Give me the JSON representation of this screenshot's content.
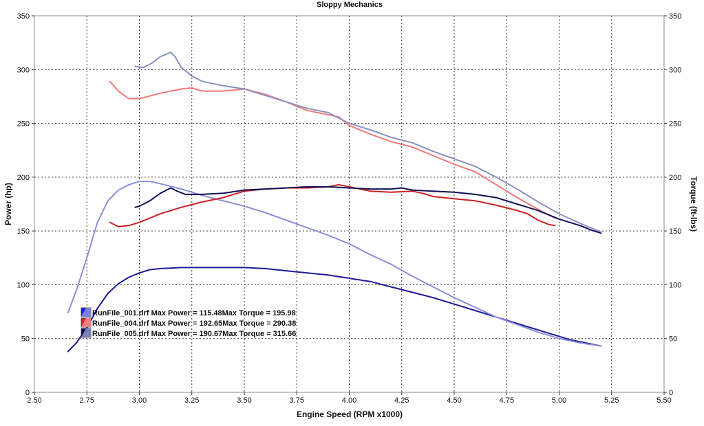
{
  "chart_data": {
    "type": "line",
    "title": "Sloppy Mechanics",
    "xlabel": "Engine Speed (RPM x1000)",
    "ylabel": "Power (hp)",
    "y2label": "Torque (ft-lbs)",
    "xlim": [
      2.5,
      5.5
    ],
    "ylim": [
      0,
      350
    ],
    "y2lim": [
      0,
      350
    ],
    "xticks": [
      "2.50",
      "2.75",
      "3.00",
      "3.25",
      "3.50",
      "3.75",
      "4.00",
      "4.25",
      "4.50",
      "4.75",
      "5.00",
      "5.25",
      "5.50"
    ],
    "yticks": [
      "0",
      "50",
      "100",
      "150",
      "200",
      "250",
      "300",
      "350"
    ],
    "y2ticks": [
      "0",
      "50",
      "100",
      "150",
      "200",
      "250",
      "300",
      "350"
    ],
    "grid": true,
    "legend_position": "lower-left",
    "legend": [
      {
        "file": "RunFile_001.drf",
        "text": "RunFile_001.drf Max Power = 115.48Max Torque = 195.98",
        "swatch": [
          "#1a1aee",
          "#7a82d8"
        ]
      },
      {
        "file": "RunFile_004.drf",
        "text": "RunFile_004.drf Max Power = 192.65Max Torque = 290.38",
        "swatch": [
          "#e02020",
          "#f08080"
        ]
      },
      {
        "file": "RunFile_005.drf",
        "text": "RunFile_005.drf Max Power = 190.67Max Torque = 315.66",
        "swatch": [
          "#0a0a50",
          "#7a80b8"
        ]
      }
    ],
    "series": [
      {
        "run": "RunFile_001.drf",
        "measure": "power",
        "axis": "left",
        "color": "#1b1b96",
        "points": [
          [
            2.66,
            38
          ],
          [
            2.7,
            46
          ],
          [
            2.75,
            60
          ],
          [
            2.8,
            78
          ],
          [
            2.85,
            92
          ],
          [
            2.9,
            101
          ],
          [
            2.95,
            107
          ],
          [
            3.0,
            111
          ],
          [
            3.05,
            114
          ],
          [
            3.1,
            115
          ],
          [
            3.2,
            116
          ],
          [
            3.3,
            116
          ],
          [
            3.4,
            116
          ],
          [
            3.5,
            116
          ],
          [
            3.6,
            115
          ],
          [
            3.7,
            113
          ],
          [
            3.8,
            111
          ],
          [
            3.9,
            109
          ],
          [
            4.0,
            106
          ],
          [
            4.1,
            103
          ],
          [
            4.2,
            98
          ],
          [
            4.3,
            93
          ],
          [
            4.4,
            88
          ],
          [
            4.5,
            82
          ],
          [
            4.6,
            76
          ],
          [
            4.7,
            70
          ],
          [
            4.8,
            64
          ],
          [
            4.9,
            58
          ],
          [
            4.95,
            55
          ],
          [
            5.0,
            52
          ],
          [
            5.05,
            49
          ],
          [
            5.1,
            47
          ],
          [
            5.15,
            45
          ],
          [
            5.2,
            43
          ]
        ]
      },
      {
        "run": "RunFile_001.drf",
        "measure": "torque",
        "axis": "right",
        "color": "#8a8edc",
        "points": [
          [
            2.66,
            74
          ],
          [
            2.7,
            95
          ],
          [
            2.75,
            125
          ],
          [
            2.8,
            158
          ],
          [
            2.85,
            178
          ],
          [
            2.9,
            188
          ],
          [
            2.95,
            193
          ],
          [
            3.0,
            196
          ],
          [
            3.05,
            196
          ],
          [
            3.1,
            194
          ],
          [
            3.2,
            189
          ],
          [
            3.3,
            183
          ],
          [
            3.4,
            178
          ],
          [
            3.5,
            173
          ],
          [
            3.6,
            167
          ],
          [
            3.7,
            160
          ],
          [
            3.8,
            153
          ],
          [
            3.9,
            146
          ],
          [
            4.0,
            138
          ],
          [
            4.1,
            128
          ],
          [
            4.2,
            119
          ],
          [
            4.3,
            108
          ],
          [
            4.4,
            98
          ],
          [
            4.5,
            88
          ],
          [
            4.6,
            79
          ],
          [
            4.7,
            70
          ],
          [
            4.8,
            63
          ],
          [
            4.9,
            56
          ],
          [
            5.0,
            50
          ],
          [
            5.1,
            46
          ],
          [
            5.2,
            43
          ]
        ]
      },
      {
        "run": "RunFile_004.drf",
        "measure": "power",
        "axis": "left",
        "color": "#cc2020",
        "points": [
          [
            2.86,
            158
          ],
          [
            2.9,
            154
          ],
          [
            2.95,
            155
          ],
          [
            3.0,
            158
          ],
          [
            3.05,
            162
          ],
          [
            3.1,
            166
          ],
          [
            3.2,
            172
          ],
          [
            3.3,
            177
          ],
          [
            3.4,
            181
          ],
          [
            3.5,
            187
          ],
          [
            3.6,
            189
          ],
          [
            3.7,
            190
          ],
          [
            3.8,
            190
          ],
          [
            3.9,
            191
          ],
          [
            3.95,
            193
          ],
          [
            4.0,
            191
          ],
          [
            4.1,
            187
          ],
          [
            4.2,
            186
          ],
          [
            4.3,
            187
          ],
          [
            4.35,
            185
          ],
          [
            4.4,
            182
          ],
          [
            4.5,
            180
          ],
          [
            4.6,
            178
          ],
          [
            4.7,
            174
          ],
          [
            4.8,
            169
          ],
          [
            4.85,
            166
          ],
          [
            4.9,
            160
          ],
          [
            4.95,
            156
          ],
          [
            4.98,
            155
          ]
        ]
      },
      {
        "run": "RunFile_004.drf",
        "measure": "torque",
        "axis": "right",
        "color": "#f07878",
        "points": [
          [
            2.86,
            289
          ],
          [
            2.9,
            280
          ],
          [
            2.95,
            273
          ],
          [
            3.0,
            273
          ],
          [
            3.1,
            278
          ],
          [
            3.2,
            282
          ],
          [
            3.25,
            283
          ],
          [
            3.3,
            280
          ],
          [
            3.4,
            280
          ],
          [
            3.5,
            282
          ],
          [
            3.6,
            277
          ],
          [
            3.7,
            270
          ],
          [
            3.8,
            262
          ],
          [
            3.9,
            258
          ],
          [
            3.95,
            256
          ],
          [
            4.0,
            248
          ],
          [
            4.1,
            240
          ],
          [
            4.2,
            233
          ],
          [
            4.3,
            228
          ],
          [
            4.4,
            220
          ],
          [
            4.5,
            212
          ],
          [
            4.6,
            205
          ],
          [
            4.7,
            193
          ],
          [
            4.8,
            181
          ],
          [
            4.9,
            170
          ],
          [
            4.98,
            162
          ]
        ]
      },
      {
        "run": "RunFile_005.drf",
        "measure": "power",
        "axis": "left",
        "color": "#10105a",
        "points": [
          [
            2.98,
            172
          ],
          [
            3.0,
            173
          ],
          [
            3.05,
            178
          ],
          [
            3.1,
            185
          ],
          [
            3.15,
            190
          ],
          [
            3.18,
            187
          ],
          [
            3.22,
            184
          ],
          [
            3.3,
            184
          ],
          [
            3.4,
            185
          ],
          [
            3.5,
            188
          ],
          [
            3.6,
            189
          ],
          [
            3.7,
            190
          ],
          [
            3.8,
            191
          ],
          [
            3.9,
            191
          ],
          [
            4.0,
            190
          ],
          [
            4.1,
            189
          ],
          [
            4.2,
            189
          ],
          [
            4.25,
            190
          ],
          [
            4.3,
            188
          ],
          [
            4.4,
            187
          ],
          [
            4.5,
            186
          ],
          [
            4.6,
            184
          ],
          [
            4.7,
            181
          ],
          [
            4.8,
            175
          ],
          [
            4.9,
            169
          ],
          [
            5.0,
            161
          ],
          [
            5.1,
            155
          ],
          [
            5.15,
            151
          ],
          [
            5.2,
            148
          ]
        ]
      },
      {
        "run": "RunFile_005.drf",
        "measure": "torque",
        "axis": "right",
        "color": "#8a90c0",
        "points": [
          [
            2.98,
            303
          ],
          [
            3.02,
            302
          ],
          [
            3.06,
            306
          ],
          [
            3.1,
            312
          ],
          [
            3.15,
            316
          ],
          [
            3.17,
            312
          ],
          [
            3.2,
            302
          ],
          [
            3.25,
            294
          ],
          [
            3.3,
            289
          ],
          [
            3.4,
            285
          ],
          [
            3.5,
            282
          ],
          [
            3.6,
            276
          ],
          [
            3.7,
            270
          ],
          [
            3.8,
            264
          ],
          [
            3.9,
            260
          ],
          [
            4.0,
            250
          ],
          [
            4.1,
            244
          ],
          [
            4.2,
            237
          ],
          [
            4.3,
            232
          ],
          [
            4.4,
            224
          ],
          [
            4.5,
            217
          ],
          [
            4.6,
            210
          ],
          [
            4.7,
            200
          ],
          [
            4.8,
            189
          ],
          [
            4.9,
            177
          ],
          [
            5.0,
            166
          ],
          [
            5.1,
            157
          ],
          [
            5.2,
            149
          ]
        ]
      }
    ]
  }
}
